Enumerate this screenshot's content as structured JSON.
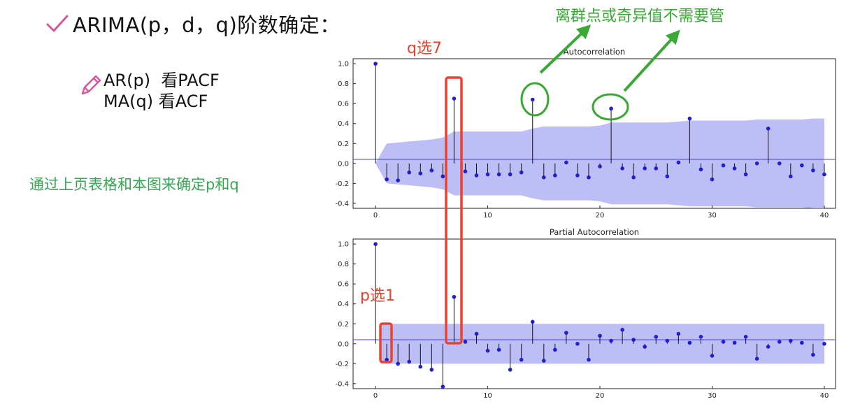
{
  "slide": {
    "title": "ARIMA(p，d，q)阶数确定：",
    "bullet_line_1": "AR(p)  看PACF",
    "bullet_line_2": "MA(q) 看ACF",
    "note": "通过上页表格和本图来确定p和q",
    "icons": {
      "bullet": "checkmark-icon",
      "sub_bullet": "pencil-icon"
    }
  },
  "annotations": {
    "q_choice": "q选7",
    "p_choice": "p选1",
    "outlier_note": "离群点或奇异值不需要管",
    "colors": {
      "red": "#e0442c",
      "green": "#3aa835"
    }
  },
  "chart_data": [
    {
      "type": "stem",
      "title": "Autocorrelation",
      "xlabel": "",
      "ylabel": "",
      "xlim": [
        -2,
        41
      ],
      "ylim": [
        -0.45,
        1.05
      ],
      "xticks": [
        0,
        10,
        20,
        30,
        40
      ],
      "yticks": [
        1.0,
        0.8,
        0.6,
        0.4,
        0.2,
        0.0,
        -0.2,
        -0.4
      ],
      "x": [
        0,
        1,
        2,
        3,
        4,
        5,
        6,
        7,
        8,
        9,
        10,
        11,
        12,
        13,
        14,
        15,
        16,
        17,
        18,
        19,
        20,
        21,
        22,
        23,
        24,
        25,
        26,
        27,
        28,
        29,
        30,
        31,
        32,
        33,
        34,
        35,
        36,
        37,
        38,
        39,
        40
      ],
      "values": [
        1.0,
        -0.16,
        -0.17,
        -0.09,
        -0.1,
        -0.07,
        -0.13,
        0.65,
        -0.08,
        -0.12,
        -0.11,
        -0.11,
        -0.11,
        -0.09,
        0.64,
        -0.14,
        -0.12,
        0.01,
        -0.12,
        -0.14,
        -0.03,
        0.55,
        -0.05,
        -0.14,
        -0.05,
        -0.05,
        -0.13,
        0.01,
        0.45,
        -0.06,
        -0.16,
        -0.02,
        -0.05,
        -0.11,
        0.0,
        0.35,
        0.0,
        -0.13,
        -0.02,
        -0.07,
        -0.11
      ],
      "confidence_band": {
        "x": [
          0,
          1,
          2,
          3,
          4,
          5,
          6,
          7,
          8,
          9,
          10,
          11,
          12,
          13,
          14,
          15,
          16,
          17,
          18,
          19,
          20,
          21,
          22,
          23,
          24,
          25,
          26,
          27,
          28,
          29,
          30,
          31,
          32,
          33,
          34,
          35,
          36,
          37,
          38,
          39,
          40
        ],
        "upper": [
          0.0,
          0.2,
          0.21,
          0.22,
          0.23,
          0.24,
          0.26,
          0.32,
          0.32,
          0.32,
          0.32,
          0.32,
          0.32,
          0.32,
          0.35,
          0.37,
          0.37,
          0.37,
          0.37,
          0.37,
          0.38,
          0.41,
          0.41,
          0.41,
          0.41,
          0.41,
          0.41,
          0.42,
          0.43,
          0.43,
          0.43,
          0.43,
          0.43,
          0.43,
          0.44,
          0.44,
          0.44,
          0.44,
          0.44,
          0.45,
          0.45
        ],
        "color": "#b3b3f5"
      },
      "series_color": "#1f1fcc"
    },
    {
      "type": "stem",
      "title": "Partial Autocorrelation",
      "xlabel": "",
      "ylabel": "",
      "xlim": [
        -2,
        41
      ],
      "ylim": [
        -0.45,
        1.05
      ],
      "xticks": [
        0,
        10,
        20,
        30,
        40
      ],
      "yticks": [
        1.0,
        0.8,
        0.6,
        0.4,
        0.2,
        0.0,
        -0.2,
        -0.4
      ],
      "x": [
        0,
        1,
        2,
        3,
        4,
        5,
        6,
        7,
        8,
        9,
        10,
        11,
        12,
        13,
        14,
        15,
        16,
        17,
        18,
        19,
        20,
        21,
        22,
        23,
        24,
        25,
        26,
        27,
        28,
        29,
        30,
        31,
        32,
        33,
        34,
        35,
        36,
        37,
        38,
        39,
        40
      ],
      "values": [
        1.0,
        -0.16,
        -0.2,
        -0.18,
        -0.23,
        -0.26,
        -0.43,
        0.47,
        0.02,
        0.1,
        -0.07,
        -0.06,
        -0.26,
        -0.16,
        0.22,
        -0.17,
        -0.06,
        0.11,
        0.0,
        -0.16,
        0.08,
        0.03,
        0.14,
        0.04,
        -0.03,
        0.07,
        0.03,
        0.1,
        0.01,
        0.07,
        -0.12,
        0.02,
        0.01,
        0.07,
        -0.15,
        -0.03,
        0.02,
        0.03,
        0.01,
        -0.11,
        0.0
      ],
      "confidence_band": {
        "upper": 0.2,
        "lower": -0.2,
        "color": "#b3b3f5"
      },
      "series_color": "#1f1fcc"
    }
  ]
}
